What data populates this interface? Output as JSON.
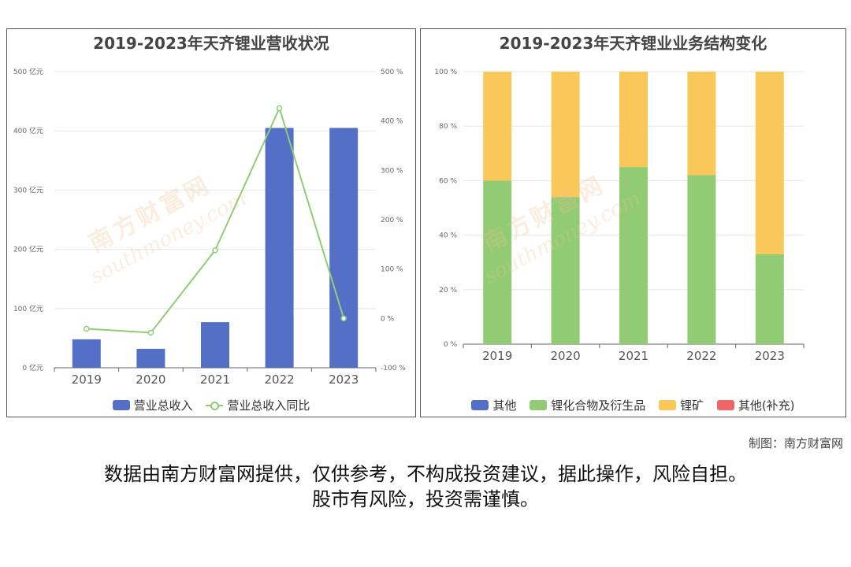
{
  "left_chart": {
    "title": "2019-2023年天齐锂业营收状况",
    "legend": [
      "营业总收入",
      "营业总收入同比"
    ]
  },
  "right_chart": {
    "title": "2019-2023年天齐锂业业务结构变化",
    "legend": [
      "其他",
      "锂化合物及衍生品",
      "锂矿",
      "其他(补充)"
    ]
  },
  "watermark": {
    "text": "南方财富网",
    "sub": "southmoney.com"
  },
  "credit": "制图：南方财富网",
  "disclaimer": {
    "line1": "数据由南方财富网提供，仅供参考，不构成投资建议，据此操作，风险自担。",
    "line2": "股市有风险，投资需谨慎。"
  },
  "colors": {
    "revenue_bar": "#5470c6",
    "yoy_line": "#91cc75",
    "other": "#5470c6",
    "lithium_compounds": "#91cc75",
    "lithium_ore": "#fac858",
    "other_supplement": "#ee6666"
  },
  "chart_data": [
    {
      "type": "bar",
      "title": "2019-2023年天齐锂业营收状况",
      "categories": [
        "2019",
        "2020",
        "2021",
        "2022",
        "2023"
      ],
      "series": [
        {
          "name": "营业总收入",
          "type": "bar",
          "axis": "left",
          "values": [
            48,
            32,
            77,
            405,
            405
          ]
        },
        {
          "name": "营业总收入同比",
          "type": "line",
          "axis": "right",
          "values": [
            -21,
            -29,
            138,
            426,
            0
          ]
        }
      ],
      "y_left": {
        "min": 0,
        "max": 500,
        "ticks": [
          0,
          100,
          200,
          300,
          400,
          500
        ],
        "unit": "亿元"
      },
      "y_right": {
        "min": -100,
        "max": 500,
        "ticks": [
          -100,
          0,
          100,
          200,
          300,
          400,
          500
        ],
        "unit": "%"
      },
      "grid": true,
      "legend_position": "bottom"
    },
    {
      "type": "bar",
      "stacked": true,
      "title": "2019-2023年天齐锂业业务结构变化",
      "categories": [
        "2019",
        "2020",
        "2021",
        "2022",
        "2023"
      ],
      "series": [
        {
          "name": "其他",
          "values": [
            0,
            0,
            0,
            0,
            0
          ]
        },
        {
          "name": "锂化合物及衍生品",
          "values": [
            60,
            54,
            65,
            62,
            33
          ]
        },
        {
          "name": "锂矿",
          "values": [
            40,
            46,
            35,
            38,
            67
          ]
        },
        {
          "name": "其他(补充)",
          "values": [
            0,
            0,
            0,
            0,
            0
          ]
        }
      ],
      "y": {
        "min": 0,
        "max": 100,
        "ticks": [
          0,
          20,
          40,
          60,
          80,
          100
        ],
        "unit": "%"
      },
      "grid": true,
      "legend_position": "bottom"
    }
  ]
}
